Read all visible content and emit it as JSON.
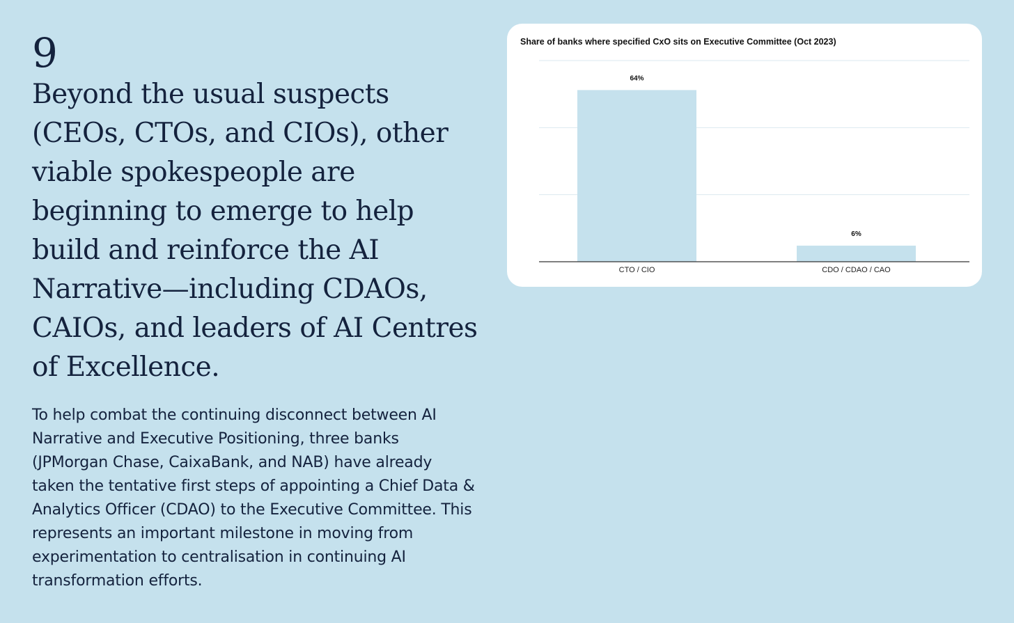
{
  "slide": {
    "number": "9",
    "headline": "Beyond the usual suspects (CEOs, CTOs, and CIOs), other viable spokespeople are beginning to emerge to help build and reinforce the AI Narrative—including CDAOs, CAIOs, and leaders of AI Centres of Excellence.",
    "body": "To help combat the continuing disconnect between AI Narrative and Executive Positioning, three banks (JPMorgan Chase, CaixaBank, and NAB) have already taken the tentative first steps of appointing a Chief Data & Analytics Officer (CDAO) to the Executive Committee. This represents an important milestone in moving from experimentation to centralisation in continuing AI transformation efforts."
  },
  "colors": {
    "background": "#c5e1ed",
    "bar": "#c5e1ed",
    "text": "#14223d"
  },
  "chart_data": {
    "type": "bar",
    "title": "Share of banks where specified CxO sits on Executive Committee (Oct 2023)",
    "categories": [
      "CTO / CIO",
      "CDO / CDAO / CAO"
    ],
    "values": [
      64,
      6
    ],
    "data_labels": [
      "64%",
      "6%"
    ],
    "ylim": [
      0,
      75
    ],
    "grid": true,
    "xlabel": "",
    "ylabel": ""
  }
}
